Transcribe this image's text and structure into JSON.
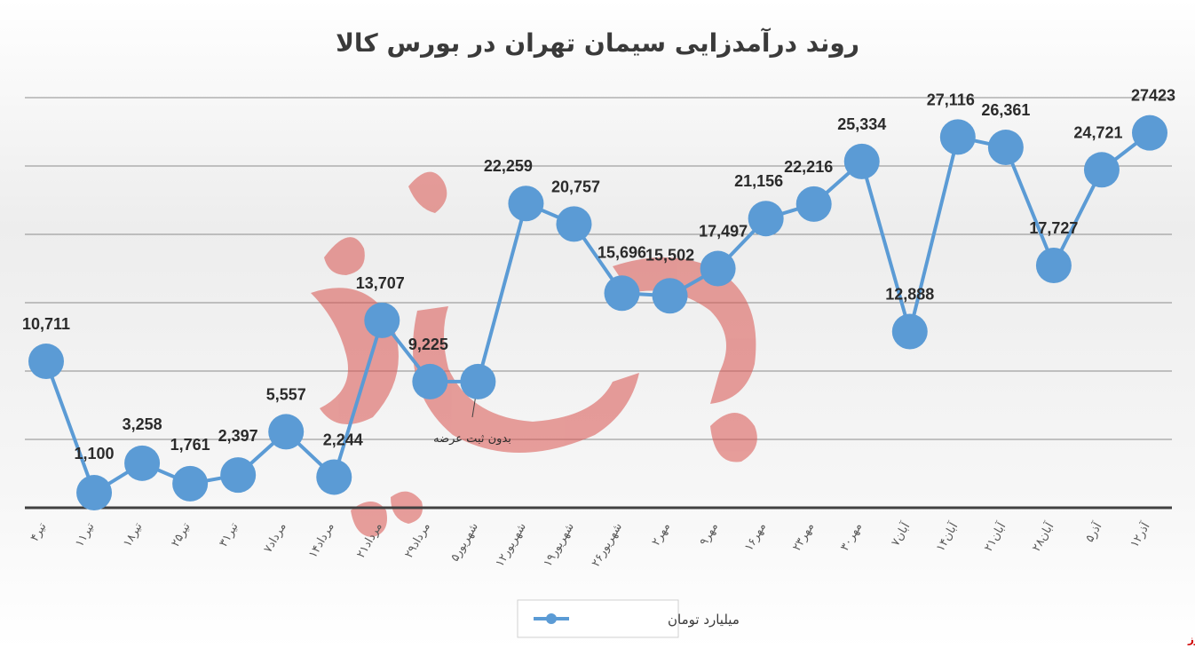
{
  "chart_data": {
    "type": "line",
    "title": "روند درآمدزایی سیمان تهران در بورس کالا",
    "categories": [
      "۴تیر",
      "۱۱تیر",
      "۱۸تیر",
      "۲۵تیر",
      "۳۱تیر",
      "۷مرداد",
      "۱۴مرداد",
      "۲۱مرداد",
      "۲۹مرداد",
      "۵شهریور",
      "۱۲شهریور",
      "۱۹شهریور",
      "۲۶شهریور",
      "۲مهر",
      "۹مهر",
      "۱۶مهر",
      "۲۳مهر",
      "۳۰مهر",
      "۷آبان",
      "۱۴آبان",
      "۲۱آبان",
      "۲۸آبان",
      "۵آذر",
      "۱۲آذر"
    ],
    "series": [
      {
        "name": "میلیارد تومان",
        "values": [
          10711,
          1100,
          3258,
          1761,
          2397,
          5557,
          2244,
          13707,
          9225,
          9225,
          22259,
          20757,
          15696,
          15502,
          17497,
          21156,
          22216,
          25334,
          12888,
          27116,
          26361,
          17727,
          24721,
          27423
        ],
        "labels": [
          "10,711",
          "1,100",
          "3,258",
          "1,761",
          "2,397",
          "5,557",
          "2,244",
          "13,707",
          "9,225",
          "",
          "22,259",
          "20,757",
          "15,696",
          "15,502",
          "17,497",
          "21,156",
          "22,216",
          "25,334",
          "12,888",
          "27,116",
          "26,361",
          "17,727",
          "24,721",
          "27423"
        ]
      }
    ],
    "ylim": [
      0,
      30000
    ],
    "grid": true,
    "legend": "bottom",
    "annotation": "بدون ثبت عرضه",
    "colors": {
      "line": "#5b9bd5",
      "background_top": "#e6e6e6",
      "background_bottom": "#ffffff",
      "grid": "#8c8c8c",
      "axis": "#404040"
    }
  },
  "watermark_text": "بورس نیوز",
  "brand_text": "بورس نیوز"
}
